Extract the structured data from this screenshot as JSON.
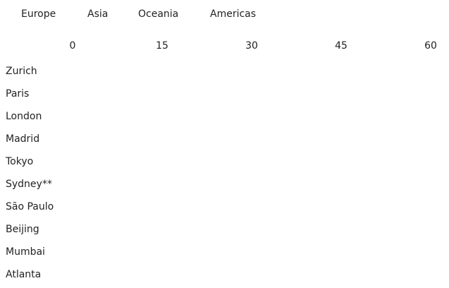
{
  "chart_data": {
    "type": "bar",
    "orientation": "horizontal",
    "title": "",
    "xlabel": "",
    "ylabel": "",
    "legend": {
      "placement": "top-left",
      "entries": [
        "Europe",
        "Asia",
        "Oceania",
        "Americas"
      ]
    },
    "x_ticks": [
      "0",
      "15",
      "30",
      "45",
      "60"
    ],
    "xlim": [
      0,
      60
    ],
    "grid": false,
    "categories": [
      "Zurich",
      "Paris",
      "London",
      "Madrid",
      "Tokyo",
      "Sydney**",
      "São Paulo",
      "Beijing",
      "Mumbai",
      "Atlanta"
    ],
    "series": [
      {
        "name": "Europe",
        "values": [
          null,
          null,
          null,
          null,
          null,
          null,
          null,
          null,
          null,
          null
        ]
      },
      {
        "name": "Asia",
        "values": [
          null,
          null,
          null,
          null,
          null,
          null,
          null,
          null,
          null,
          null
        ]
      },
      {
        "name": "Oceania",
        "values": [
          null,
          null,
          null,
          null,
          null,
          null,
          null,
          null,
          null,
          null
        ]
      },
      {
        "name": "Americas",
        "values": [
          null,
          null,
          null,
          null,
          null,
          null,
          null,
          null,
          null,
          null
        ]
      }
    ]
  }
}
